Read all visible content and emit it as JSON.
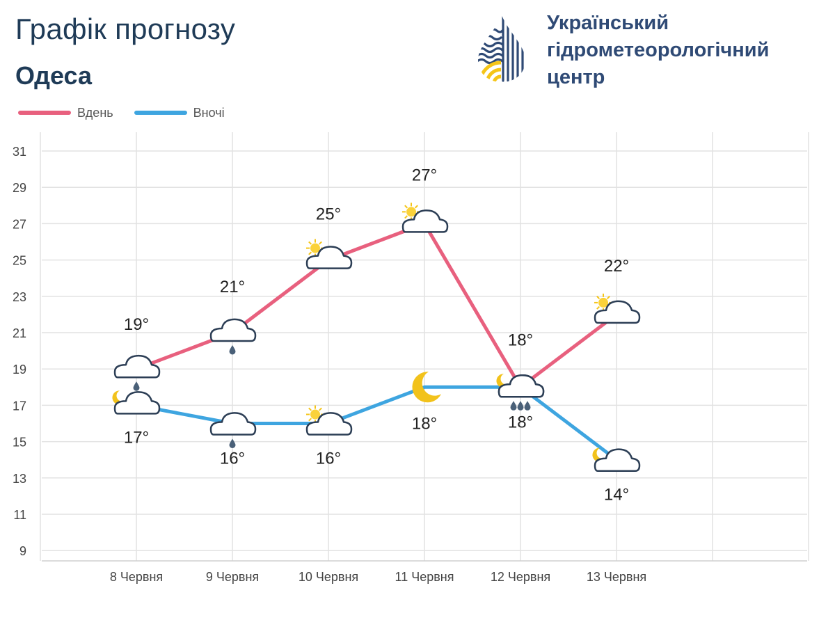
{
  "header": {
    "title": "Графік прогнозу",
    "city": "Одеса"
  },
  "logo": {
    "org_line1": "Український",
    "org_line2": "гідрометеорологічний",
    "org_line3": "центр",
    "icon": "water-drop-logo-icon"
  },
  "colors": {
    "day": "#e8607e",
    "night": "#3ea5e0",
    "logo_blue": "#2f4a75",
    "logo_yellow": "#f5c518"
  },
  "chart_data": {
    "type": "line",
    "categories": [
      "8 Червня",
      "9 Червня",
      "10 Червня",
      "11 Червня",
      "12 Червня",
      "13 Червня"
    ],
    "y_ticks": [
      31,
      29,
      27,
      25,
      23,
      21,
      19,
      17,
      15,
      13,
      11,
      9
    ],
    "ylim": [
      9,
      32
    ],
    "grid": true,
    "legend_position": "top-left",
    "series": [
      {
        "name": "Вдень",
        "values": [
          19,
          21,
          25,
          27,
          18,
          22
        ],
        "labels": [
          "19°",
          "21°",
          "25°",
          "27°",
          "18°",
          "22°"
        ],
        "icons": [
          "cloud-rain",
          "cloud-rain",
          "cloud-sun",
          "cloud-sun",
          "cloud-heavy-rain",
          "cloud-sun"
        ]
      },
      {
        "name": "Вночі",
        "values": [
          17,
          16,
          16,
          18,
          18,
          14
        ],
        "labels": [
          "17°",
          "16°",
          "16°",
          "18°",
          "18°",
          "14°"
        ],
        "icons": [
          "cloud-moon",
          "cloud-rain",
          "cloud-sun",
          "moon",
          "cloud-moon",
          "cloud-moon"
        ]
      }
    ]
  }
}
